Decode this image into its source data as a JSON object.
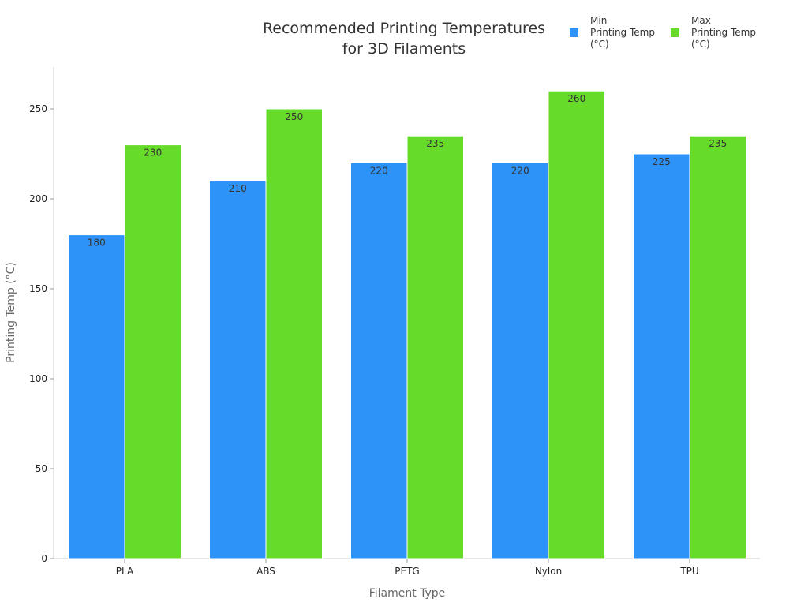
{
  "chart_data": {
    "type": "bar",
    "title_lines": [
      "Recommended Printing Temperatures",
      "for 3D Filaments"
    ],
    "xlabel": "Filament Type",
    "ylabel": "Printing Temp (°C)",
    "categories": [
      "PLA",
      "ABS",
      "PETG",
      "Nylon",
      "TPU"
    ],
    "ylim": [
      0,
      273
    ],
    "yticks": [
      0,
      50,
      100,
      150,
      200,
      250
    ],
    "grid": false,
    "legend_position": "top-right",
    "series": [
      {
        "name_lines": [
          "Min",
          "Printing Temp",
          "(°C)"
        ],
        "color": "#2e93f8",
        "values": [
          180,
          210,
          220,
          220,
          225
        ]
      },
      {
        "name_lines": [
          "Max",
          "Printing Temp",
          "(°C)"
        ],
        "color": "#67db2a",
        "values": [
          230,
          250,
          235,
          260,
          235
        ]
      }
    ]
  }
}
